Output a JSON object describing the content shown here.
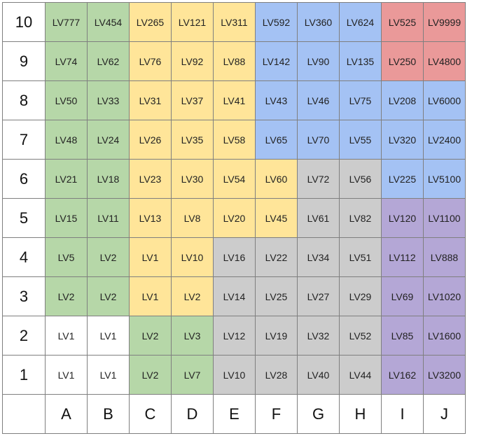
{
  "colors": {
    "W": "#ffffff",
    "G": "#b6d7a8",
    "Y": "#ffe599",
    "B": "#a4c2f4",
    "R": "#ea9999",
    "S": "#cccccc",
    "P": "#b4a7d6"
  },
  "columns": [
    "A",
    "B",
    "C",
    "D",
    "E",
    "F",
    "G",
    "H",
    "I",
    "J"
  ],
  "rows": [
    {
      "label": "10",
      "cells": [
        {
          "t": "LV777",
          "c": "G"
        },
        {
          "t": "LV454",
          "c": "G"
        },
        {
          "t": "LV265",
          "c": "Y"
        },
        {
          "t": "LV121",
          "c": "Y"
        },
        {
          "t": "LV311",
          "c": "Y"
        },
        {
          "t": "LV592",
          "c": "B"
        },
        {
          "t": "LV360",
          "c": "B"
        },
        {
          "t": "LV624",
          "c": "B"
        },
        {
          "t": "LV525",
          "c": "R"
        },
        {
          "t": "LV9999",
          "c": "R"
        }
      ]
    },
    {
      "label": "9",
      "cells": [
        {
          "t": "LV74",
          "c": "G"
        },
        {
          "t": "LV62",
          "c": "G"
        },
        {
          "t": "LV76",
          "c": "Y"
        },
        {
          "t": "LV92",
          "c": "Y"
        },
        {
          "t": "LV88",
          "c": "Y"
        },
        {
          "t": "LV142",
          "c": "B"
        },
        {
          "t": "LV90",
          "c": "B"
        },
        {
          "t": "LV135",
          "c": "B"
        },
        {
          "t": "LV250",
          "c": "R"
        },
        {
          "t": "LV4800",
          "c": "R"
        }
      ]
    },
    {
      "label": "8",
      "cells": [
        {
          "t": "LV50",
          "c": "G"
        },
        {
          "t": "LV33",
          "c": "G"
        },
        {
          "t": "LV31",
          "c": "Y"
        },
        {
          "t": "LV37",
          "c": "Y"
        },
        {
          "t": "LV41",
          "c": "Y"
        },
        {
          "t": "LV43",
          "c": "B"
        },
        {
          "t": "LV46",
          "c": "B"
        },
        {
          "t": "LV75",
          "c": "B"
        },
        {
          "t": "LV208",
          "c": "B"
        },
        {
          "t": "LV6000",
          "c": "B"
        }
      ]
    },
    {
      "label": "7",
      "cells": [
        {
          "t": "LV48",
          "c": "G"
        },
        {
          "t": "LV24",
          "c": "G"
        },
        {
          "t": "LV26",
          "c": "Y"
        },
        {
          "t": "LV35",
          "c": "Y"
        },
        {
          "t": "LV58",
          "c": "Y"
        },
        {
          "t": "LV65",
          "c": "B"
        },
        {
          "t": "LV70",
          "c": "B"
        },
        {
          "t": "LV55",
          "c": "B"
        },
        {
          "t": "LV320",
          "c": "B"
        },
        {
          "t": "LV2400",
          "c": "B"
        }
      ]
    },
    {
      "label": "6",
      "cells": [
        {
          "t": "LV21",
          "c": "G"
        },
        {
          "t": "LV18",
          "c": "G"
        },
        {
          "t": "LV23",
          "c": "Y"
        },
        {
          "t": "LV30",
          "c": "Y"
        },
        {
          "t": "LV54",
          "c": "Y"
        },
        {
          "t": "LV60",
          "c": "Y"
        },
        {
          "t": "LV72",
          "c": "S"
        },
        {
          "t": "LV56",
          "c": "S"
        },
        {
          "t": "LV225",
          "c": "B"
        },
        {
          "t": "LV5100",
          "c": "B"
        }
      ]
    },
    {
      "label": "5",
      "cells": [
        {
          "t": "LV15",
          "c": "G"
        },
        {
          "t": "LV11",
          "c": "G"
        },
        {
          "t": "LV13",
          "c": "Y"
        },
        {
          "t": "LV8",
          "c": "Y"
        },
        {
          "t": "LV20",
          "c": "Y"
        },
        {
          "t": "LV45",
          "c": "Y"
        },
        {
          "t": "LV61",
          "c": "S"
        },
        {
          "t": "LV82",
          "c": "S"
        },
        {
          "t": "LV120",
          "c": "P"
        },
        {
          "t": "LV1100",
          "c": "P"
        }
      ]
    },
    {
      "label": "4",
      "cells": [
        {
          "t": "LV5",
          "c": "G"
        },
        {
          "t": "LV2",
          "c": "G"
        },
        {
          "t": "LV1",
          "c": "Y"
        },
        {
          "t": "LV10",
          "c": "Y"
        },
        {
          "t": "LV16",
          "c": "S"
        },
        {
          "t": "LV22",
          "c": "S"
        },
        {
          "t": "LV34",
          "c": "S"
        },
        {
          "t": "LV51",
          "c": "S"
        },
        {
          "t": "LV112",
          "c": "P"
        },
        {
          "t": "LV888",
          "c": "P"
        }
      ]
    },
    {
      "label": "3",
      "cells": [
        {
          "t": "LV2",
          "c": "G"
        },
        {
          "t": "LV2",
          "c": "G"
        },
        {
          "t": "LV1",
          "c": "Y"
        },
        {
          "t": "LV2",
          "c": "Y"
        },
        {
          "t": "LV14",
          "c": "S"
        },
        {
          "t": "LV25",
          "c": "S"
        },
        {
          "t": "LV27",
          "c": "S"
        },
        {
          "t": "LV29",
          "c": "S"
        },
        {
          "t": "LV69",
          "c": "P"
        },
        {
          "t": "LV1020",
          "c": "P"
        }
      ]
    },
    {
      "label": "2",
      "cells": [
        {
          "t": "LV1",
          "c": "W"
        },
        {
          "t": "LV1",
          "c": "W"
        },
        {
          "t": "LV2",
          "c": "G"
        },
        {
          "t": "LV3",
          "c": "G"
        },
        {
          "t": "LV12",
          "c": "S"
        },
        {
          "t": "LV19",
          "c": "S"
        },
        {
          "t": "LV32",
          "c": "S"
        },
        {
          "t": "LV52",
          "c": "S"
        },
        {
          "t": "LV85",
          "c": "P"
        },
        {
          "t": "LV1600",
          "c": "P"
        }
      ]
    },
    {
      "label": "1",
      "cells": [
        {
          "t": "LV1",
          "c": "W"
        },
        {
          "t": "LV1",
          "c": "W"
        },
        {
          "t": "LV2",
          "c": "G"
        },
        {
          "t": "LV7",
          "c": "G"
        },
        {
          "t": "LV10",
          "c": "S"
        },
        {
          "t": "LV28",
          "c": "S"
        },
        {
          "t": "LV40",
          "c": "S"
        },
        {
          "t": "LV44",
          "c": "S"
        },
        {
          "t": "LV162",
          "c": "P"
        },
        {
          "t": "LV3200",
          "c": "P"
        }
      ]
    }
  ]
}
